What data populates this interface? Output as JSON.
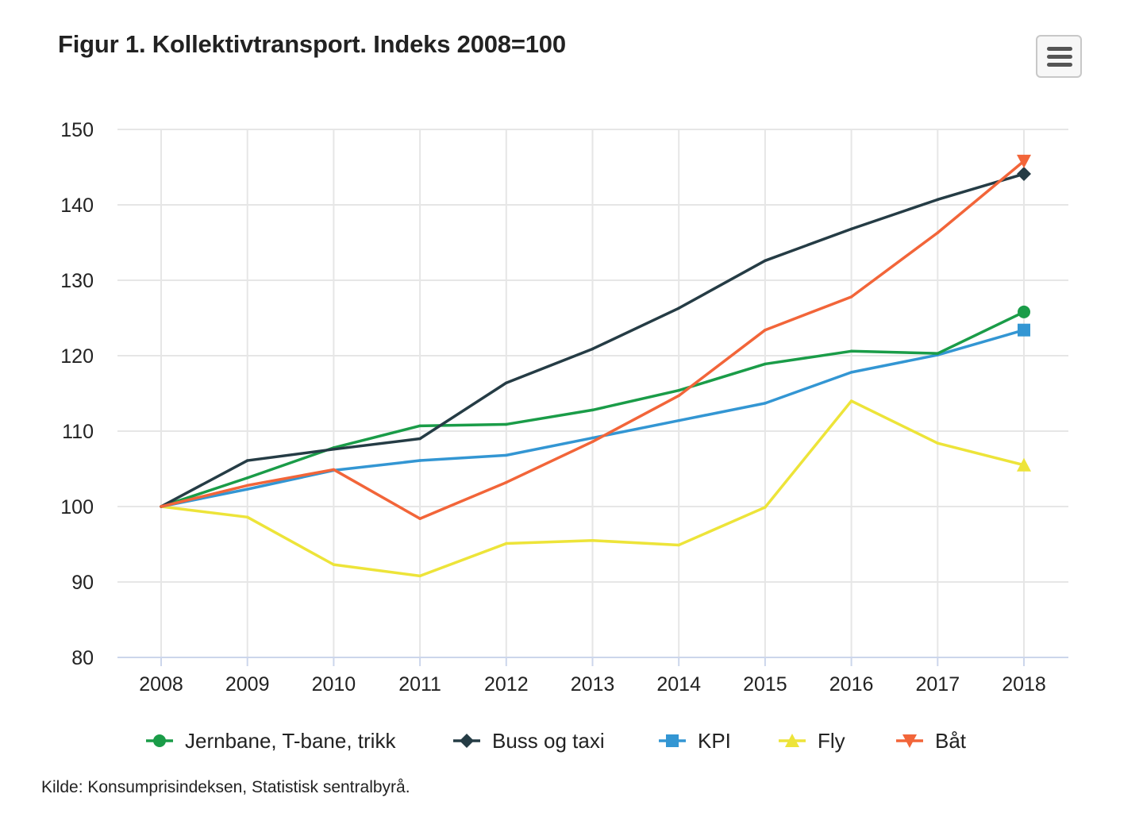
{
  "title": "Figur 1. Kollektivtransport. Indeks 2008=100",
  "menu": {
    "icon": "hamburger-menu-icon"
  },
  "source": "Kilde: Konsumprisindeksen, Statistisk sentralbyrå.",
  "chart_data": {
    "type": "line",
    "title": "Figur 1. Kollektivtransport. Indeks 2008=100",
    "xlabel": "",
    "ylabel": "",
    "categories": [
      "2008",
      "2009",
      "2010",
      "2011",
      "2012",
      "2013",
      "2014",
      "2015",
      "2016",
      "2017",
      "2018"
    ],
    "ylim": [
      80,
      150
    ],
    "yticks": [
      "80",
      "90",
      "100",
      "110",
      "120",
      "130",
      "140",
      "150"
    ],
    "grid": true,
    "legend_position": "bottom",
    "series": [
      {
        "name": "Jernbane, T-bane, trikk",
        "color": "#1a9c48",
        "marker": "circle",
        "values": [
          100,
          103.8,
          107.8,
          110.7,
          110.9,
          112.8,
          115.4,
          118.9,
          120.6,
          120.3,
          125.8
        ]
      },
      {
        "name": "Buss og taxi",
        "color": "#253c45",
        "marker": "diamond",
        "values": [
          100,
          106.1,
          107.6,
          109,
          116.4,
          120.9,
          126.3,
          132.6,
          136.8,
          140.7,
          144.1
        ]
      },
      {
        "name": "KPI",
        "color": "#3396d3",
        "marker": "square",
        "values": [
          100,
          102.3,
          104.8,
          106.1,
          106.8,
          109.1,
          111.4,
          113.7,
          117.8,
          120.1,
          123.4
        ]
      },
      {
        "name": "Fly",
        "color": "#ede439",
        "marker": "triangle",
        "values": [
          100,
          98.6,
          92.3,
          90.8,
          95.1,
          95.5,
          94.9,
          99.9,
          114,
          108.4,
          105.5
        ]
      },
      {
        "name": "Båt",
        "color": "#f26539",
        "marker": "triangle-down",
        "values": [
          100,
          102.8,
          104.9,
          98.4,
          103.2,
          108.6,
          114.7,
          123.4,
          127.8,
          136.3,
          145.8
        ]
      }
    ]
  }
}
